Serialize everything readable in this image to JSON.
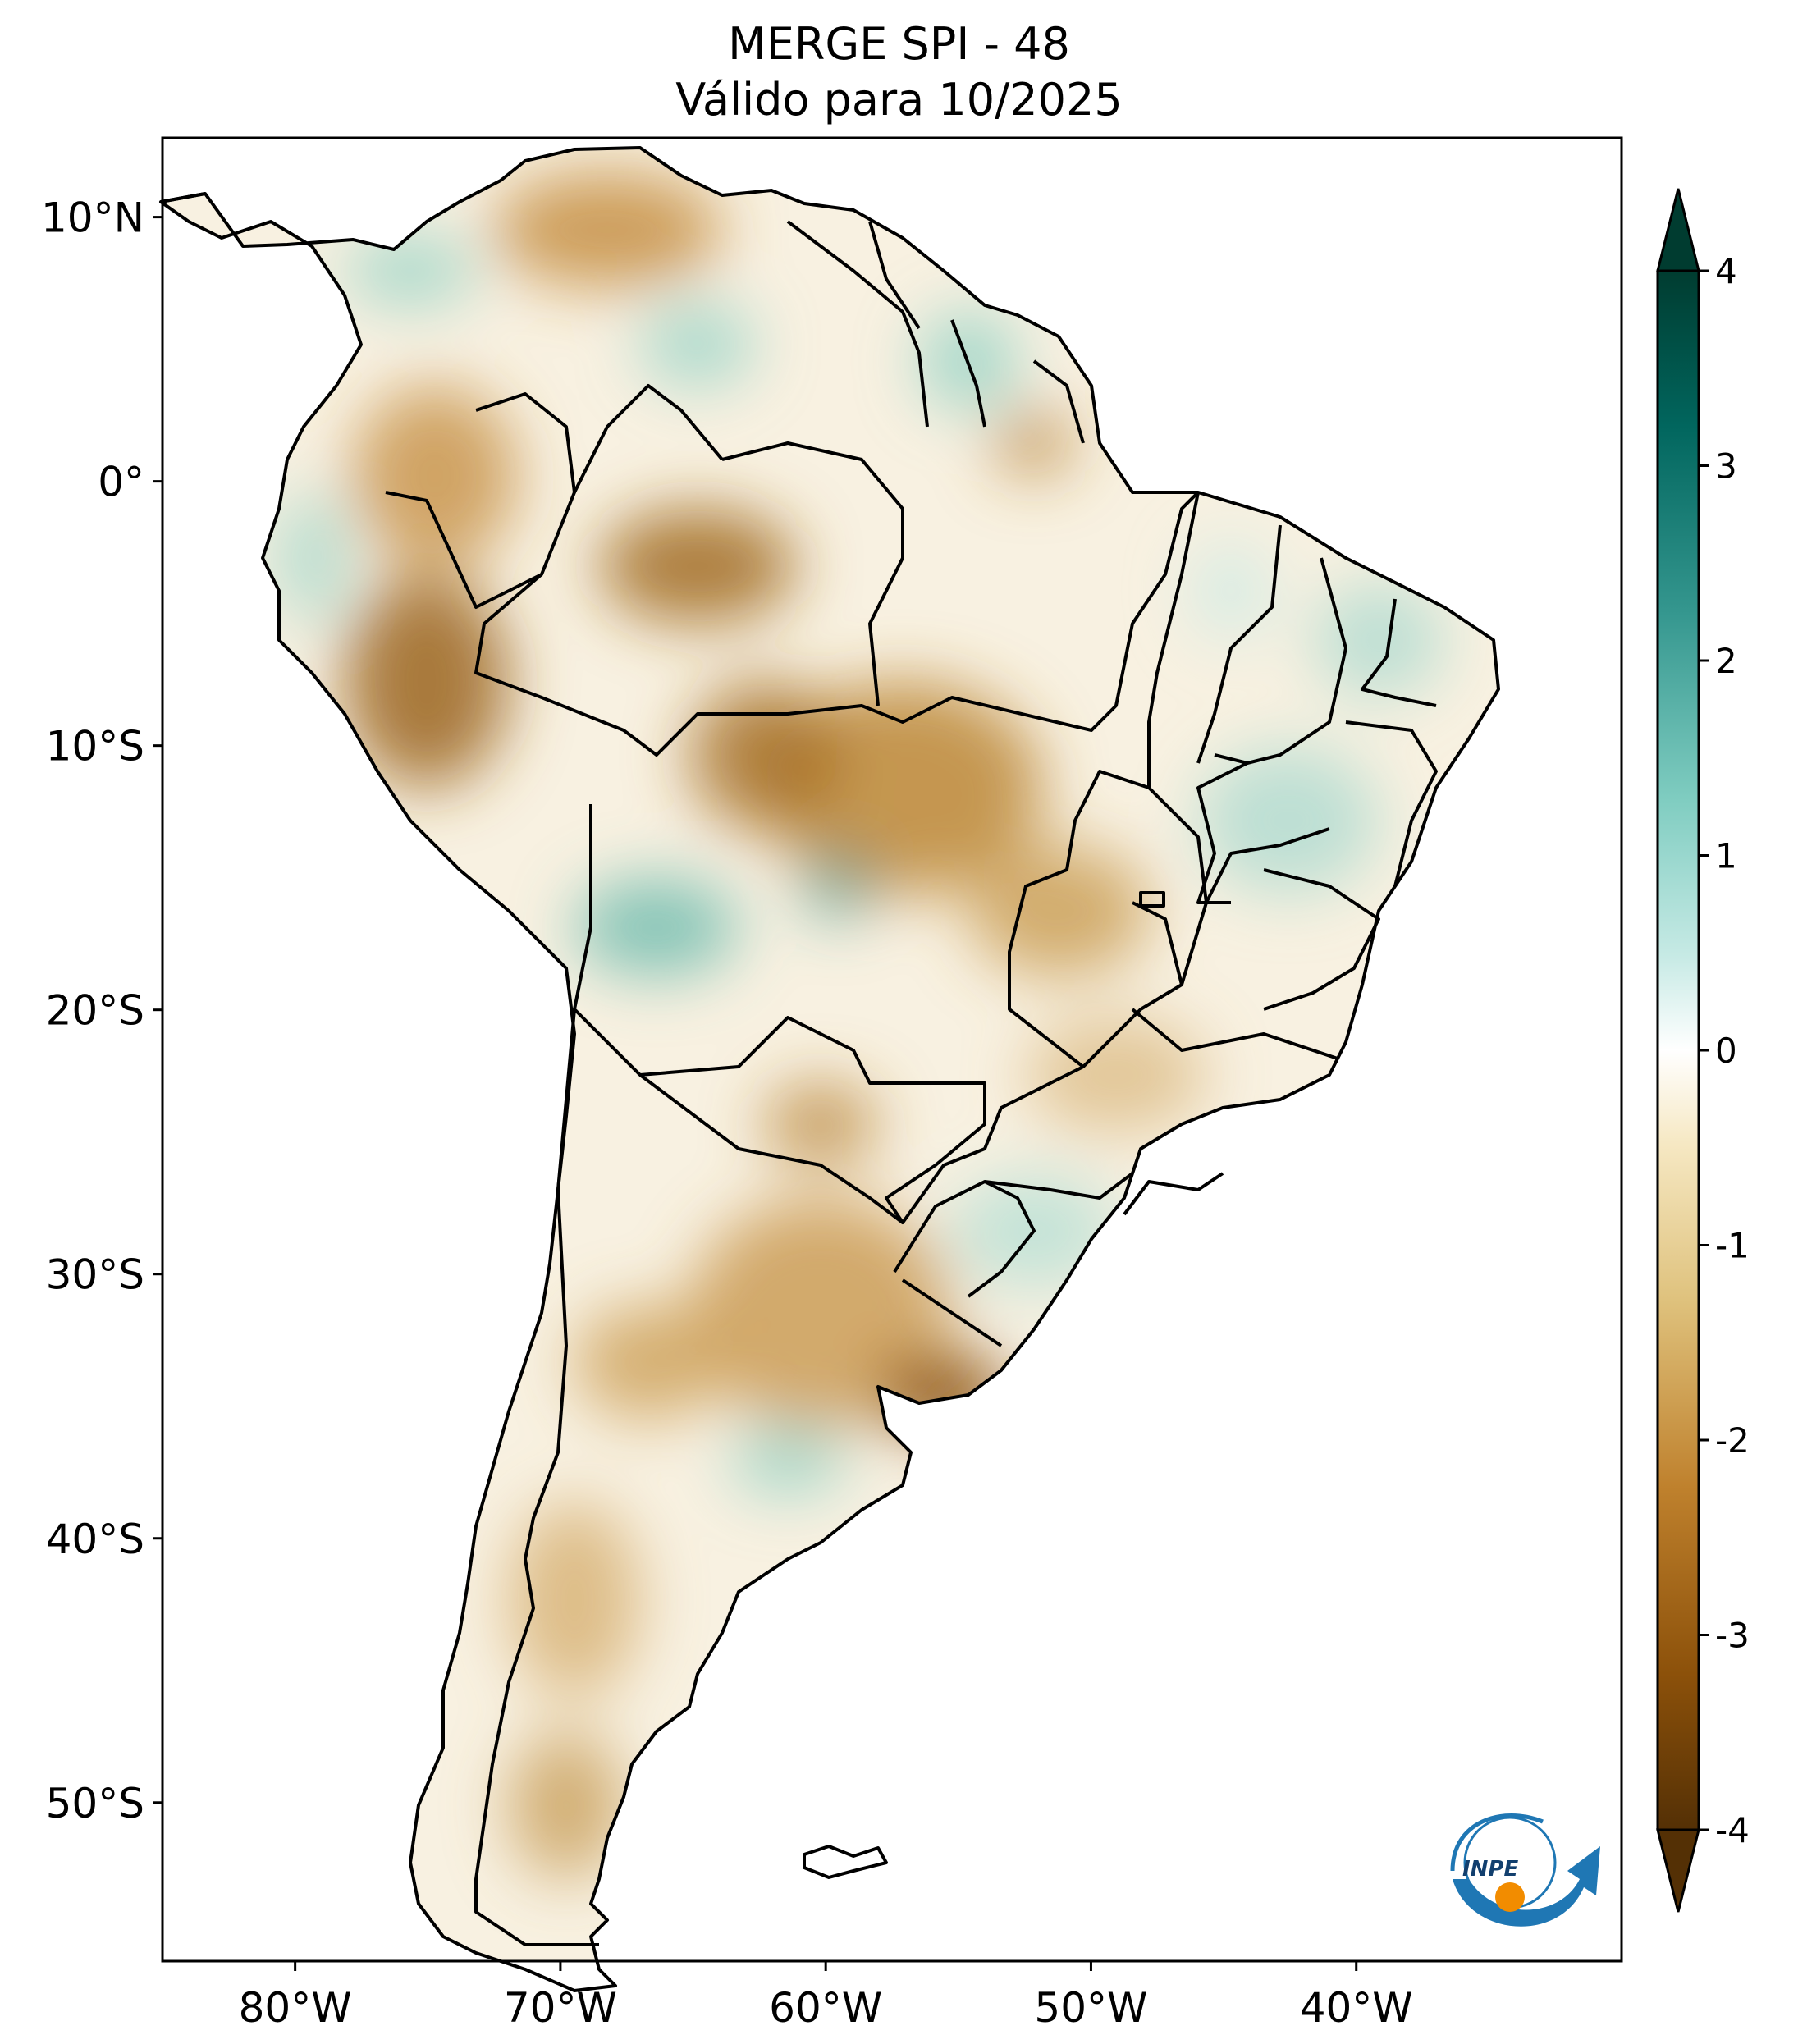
{
  "title": {
    "line1": "MERGE   SPI - 48",
    "line2": "Válido para 10/2025"
  },
  "map": {
    "lon_range": [
      -85,
      -30
    ],
    "lat_range": [
      -56,
      13
    ],
    "lat_ticks": [
      {
        "value": 10,
        "label": "10°N"
      },
      {
        "value": 0,
        "label": "0°"
      },
      {
        "value": -10,
        "label": "10°S"
      },
      {
        "value": -20,
        "label": "20°S"
      },
      {
        "value": -30,
        "label": "30°S"
      },
      {
        "value": -40,
        "label": "40°S"
      },
      {
        "value": -50,
        "label": "50°S"
      }
    ],
    "lon_ticks": [
      {
        "value": -80,
        "label": "80°W"
      },
      {
        "value": -70,
        "label": "70°W"
      },
      {
        "value": -60,
        "label": "60°W"
      },
      {
        "value": -50,
        "label": "50°W"
      },
      {
        "value": -40,
        "label": "40°W"
      }
    ]
  },
  "colorbar": {
    "min": -4,
    "max": 4,
    "ticks": [
      {
        "value": 4,
        "label": "4"
      },
      {
        "value": 3,
        "label": "3"
      },
      {
        "value": 2,
        "label": "2"
      },
      {
        "value": 1,
        "label": "1"
      },
      {
        "value": 0,
        "label": "0"
      },
      {
        "value": -1,
        "label": "-1"
      },
      {
        "value": -2,
        "label": "-2"
      },
      {
        "value": -3,
        "label": "-3"
      },
      {
        "value": -4,
        "label": "-4"
      }
    ],
    "colors": {
      "dry_extreme": "#543005",
      "dry_strong": "#8c510a",
      "dry_moderate": "#bf812d",
      "dry_mild": "#dfc27d",
      "dry_weak": "#f6e8c3",
      "neutral": "#ffffff",
      "wet_weak": "#c7eae5",
      "wet_mild": "#80cdc1",
      "wet_moderate": "#35978f",
      "wet_strong": "#01665e",
      "wet_extreme": "#003c30"
    }
  },
  "logo": {
    "text": "INPE"
  }
}
